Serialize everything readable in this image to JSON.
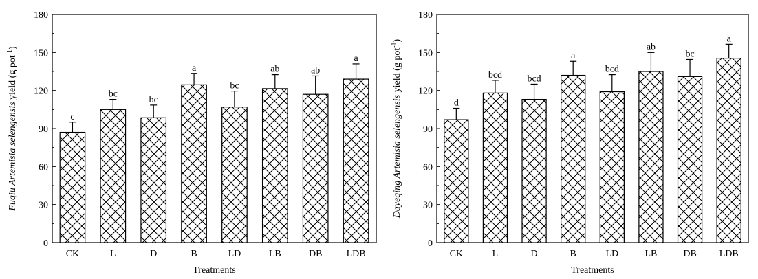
{
  "figure": {
    "patterns": {
      "bar_fill": "#ffffff",
      "hatch_color": "#000000",
      "line_color": "#000000"
    }
  },
  "chart_data": [
    {
      "type": "bar",
      "title": "",
      "xlabel": "Treatments",
      "ylabel_parts": [
        {
          "text": "Fuqiu ",
          "italic": true
        },
        {
          "text": "Artemisia selengensis",
          "italic": true
        },
        {
          "text": " yield (g pot",
          "italic": false
        },
        {
          "text": "-1",
          "italic": false,
          "sup": true
        },
        {
          "text": ")",
          "italic": false
        }
      ],
      "categories": [
        "CK",
        "L",
        "D",
        "B",
        "LD",
        "LB",
        "DB",
        "LDB"
      ],
      "values": [
        87,
        105,
        98.5,
        124.5,
        107,
        121.5,
        117,
        129
      ],
      "errors": [
        8,
        8,
        10,
        9,
        12.5,
        11,
        14.5,
        12
      ],
      "significance": [
        "c",
        "bc",
        "bc",
        "a",
        "bc",
        "ab",
        "ab",
        "a"
      ],
      "ylim": [
        0,
        180
      ],
      "yticks": [
        0,
        30,
        60,
        90,
        120,
        150,
        180
      ],
      "hatch": "crosshatch"
    },
    {
      "type": "bar",
      "title": "",
      "xlabel": "Treatments",
      "ylabel_parts": [
        {
          "text": "Dayeqing ",
          "italic": true
        },
        {
          "text": "Artemisia selengensis",
          "italic": true
        },
        {
          "text": " yield (g pot",
          "italic": false
        },
        {
          "text": "-1",
          "italic": false,
          "sup": true
        },
        {
          "text": ")",
          "italic": false
        }
      ],
      "categories": [
        "CK",
        "L",
        "D",
        "B",
        "LD",
        "LB",
        "DB",
        "LDB"
      ],
      "values": [
        97,
        118,
        113,
        132,
        119,
        135,
        131,
        145.5
      ],
      "errors": [
        9,
        10,
        12,
        11,
        13.5,
        15,
        13.5,
        11
      ],
      "significance": [
        "d",
        "bcd",
        "bcd",
        "a",
        "bcd",
        "ab",
        "bc",
        "a"
      ],
      "ylim": [
        0,
        180
      ],
      "yticks": [
        0,
        30,
        60,
        90,
        120,
        150,
        180
      ],
      "hatch": "crosshatch"
    }
  ]
}
